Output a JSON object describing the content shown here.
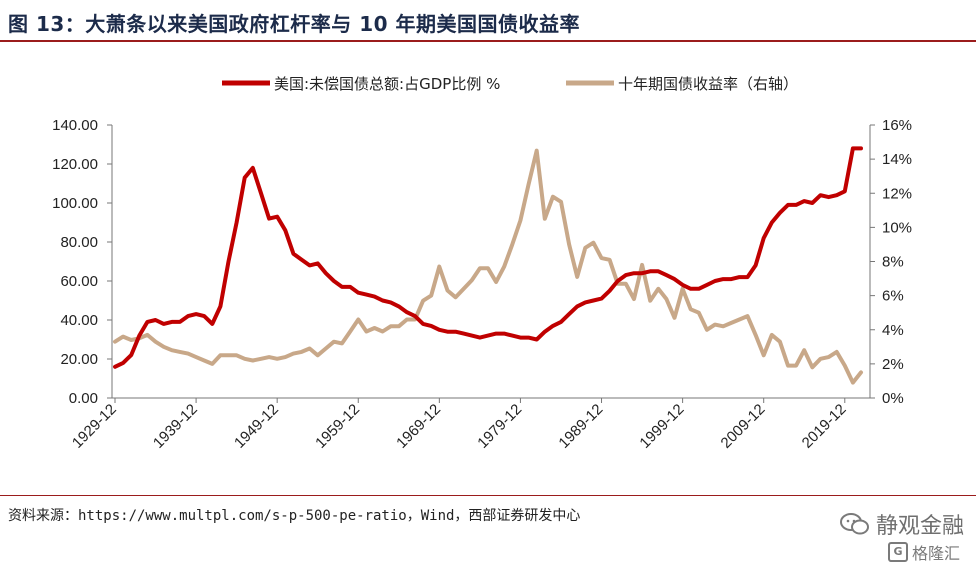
{
  "header": {
    "title": "图 13：大萧条以来美国政府杠杆率与 10 年期美国国债收益率"
  },
  "footer": {
    "source": "资料来源：https://www.multpl.com/s-p-500-pe-ratio，Wind，西部证券研发中心",
    "watermark": "静观金融",
    "watermark2": "格隆汇"
  },
  "chart_data": {
    "type": "line",
    "xlabel": "",
    "ylabel": "",
    "x_tick_labels": [
      "1929-12",
      "1939-12",
      "1949-12",
      "1959-12",
      "1969-12",
      "1979-12",
      "1989-12",
      "1999-12",
      "2009-12",
      "2019-12"
    ],
    "y_left": {
      "lim": [
        0,
        140
      ],
      "ticks": [
        "0.00",
        "20.00",
        "40.00",
        "60.00",
        "80.00",
        "100.00",
        "120.00",
        "140.00"
      ]
    },
    "y_right": {
      "lim": [
        0,
        16
      ],
      "ticks": [
        "0%",
        "2%",
        "4%",
        "6%",
        "8%",
        "10%",
        "12%",
        "14%",
        "16%"
      ]
    },
    "grid": false,
    "legend_placement": "top",
    "colors": {
      "debt": "#c00000",
      "yield": "#c8a889"
    },
    "series": [
      {
        "name": "美国:未偿国债总额:占GDP比例 %",
        "axis": "left",
        "x": [
          1929,
          1930,
          1931,
          1932,
          1933,
          1934,
          1935,
          1936,
          1937,
          1938,
          1939,
          1940,
          1941,
          1942,
          1943,
          1944,
          1945,
          1946,
          1947,
          1948,
          1949,
          1950,
          1951,
          1952,
          1953,
          1954,
          1955,
          1956,
          1957,
          1958,
          1959,
          1960,
          1961,
          1962,
          1963,
          1964,
          1965,
          1966,
          1967,
          1968,
          1969,
          1970,
          1971,
          1972,
          1973,
          1974,
          1975,
          1976,
          1977,
          1978,
          1979,
          1980,
          1981,
          1982,
          1983,
          1984,
          1985,
          1986,
          1987,
          1988,
          1989,
          1990,
          1991,
          1992,
          1993,
          1994,
          1995,
          1996,
          1997,
          1998,
          1999,
          2000,
          2001,
          2002,
          2003,
          2004,
          2005,
          2006,
          2007,
          2008,
          2009,
          2010,
          2011,
          2012,
          2013,
          2014,
          2015,
          2016,
          2017,
          2018,
          2019,
          2020,
          2021
        ],
        "values": [
          16,
          18,
          22,
          32,
          39,
          40,
          38,
          39,
          39,
          42,
          43,
          42,
          38,
          47,
          70,
          90,
          113,
          118,
          105,
          92,
          93,
          86,
          74,
          71,
          68,
          69,
          64,
          60,
          57,
          57,
          54,
          53,
          52,
          50,
          49,
          47,
          44,
          42,
          38,
          37,
          35,
          34,
          34,
          33,
          32,
          31,
          32,
          33,
          33,
          32,
          31,
          31,
          30,
          34,
          37,
          39,
          43,
          47,
          49,
          50,
          51,
          55,
          60,
          63,
          64,
          64,
          65,
          65,
          63,
          61,
          58,
          56,
          56,
          58,
          60,
          61,
          61,
          62,
          62,
          68,
          82,
          90,
          95,
          99,
          99,
          101,
          100,
          104,
          103,
          104,
          106,
          128,
          128
        ]
      },
      {
        "name": "十年期国债收益率（右轴）",
        "axis": "right",
        "x": [
          1929,
          1930,
          1931,
          1932,
          1933,
          1934,
          1935,
          1936,
          1937,
          1938,
          1939,
          1940,
          1941,
          1942,
          1943,
          1944,
          1945,
          1946,
          1947,
          1948,
          1949,
          1950,
          1951,
          1952,
          1953,
          1954,
          1955,
          1956,
          1957,
          1958,
          1959,
          1960,
          1961,
          1962,
          1963,
          1964,
          1965,
          1966,
          1967,
          1968,
          1969,
          1970,
          1971,
          1972,
          1973,
          1974,
          1975,
          1976,
          1977,
          1978,
          1979,
          1980,
          1981,
          1982,
          1983,
          1984,
          1985,
          1986,
          1987,
          1988,
          1989,
          1990,
          1991,
          1992,
          1993,
          1994,
          1995,
          1996,
          1997,
          1998,
          1999,
          2000,
          2001,
          2002,
          2003,
          2004,
          2005,
          2006,
          2007,
          2008,
          2009,
          2010,
          2011,
          2012,
          2013,
          2014,
          2015,
          2016,
          2017,
          2018,
          2019,
          2020,
          2021
        ],
        "values": [
          3.3,
          3.6,
          3.4,
          3.5,
          3.7,
          3.3,
          3.0,
          2.8,
          2.7,
          2.6,
          2.4,
          2.2,
          2.0,
          2.5,
          2.5,
          2.5,
          2.3,
          2.2,
          2.3,
          2.4,
          2.3,
          2.4,
          2.6,
          2.7,
          2.9,
          2.5,
          2.9,
          3.3,
          3.2,
          3.9,
          4.6,
          3.9,
          4.1,
          3.9,
          4.2,
          4.2,
          4.6,
          4.6,
          5.7,
          6.0,
          7.7,
          6.3,
          5.9,
          6.4,
          6.9,
          7.6,
          7.6,
          6.8,
          7.7,
          9.0,
          10.4,
          12.5,
          14.5,
          10.5,
          11.8,
          11.5,
          9.0,
          7.1,
          8.8,
          9.1,
          8.2,
          8.1,
          6.7,
          6.7,
          5.8,
          7.8,
          5.7,
          6.4,
          5.8,
          4.7,
          6.4,
          5.2,
          5.0,
          4.0,
          4.3,
          4.2,
          4.4,
          4.6,
          4.8,
          3.7,
          2.5,
          3.7,
          3.3,
          1.9,
          1.9,
          2.8,
          1.8,
          2.3,
          2.4,
          2.7,
          1.9,
          0.9,
          1.5
        ]
      }
    ]
  }
}
